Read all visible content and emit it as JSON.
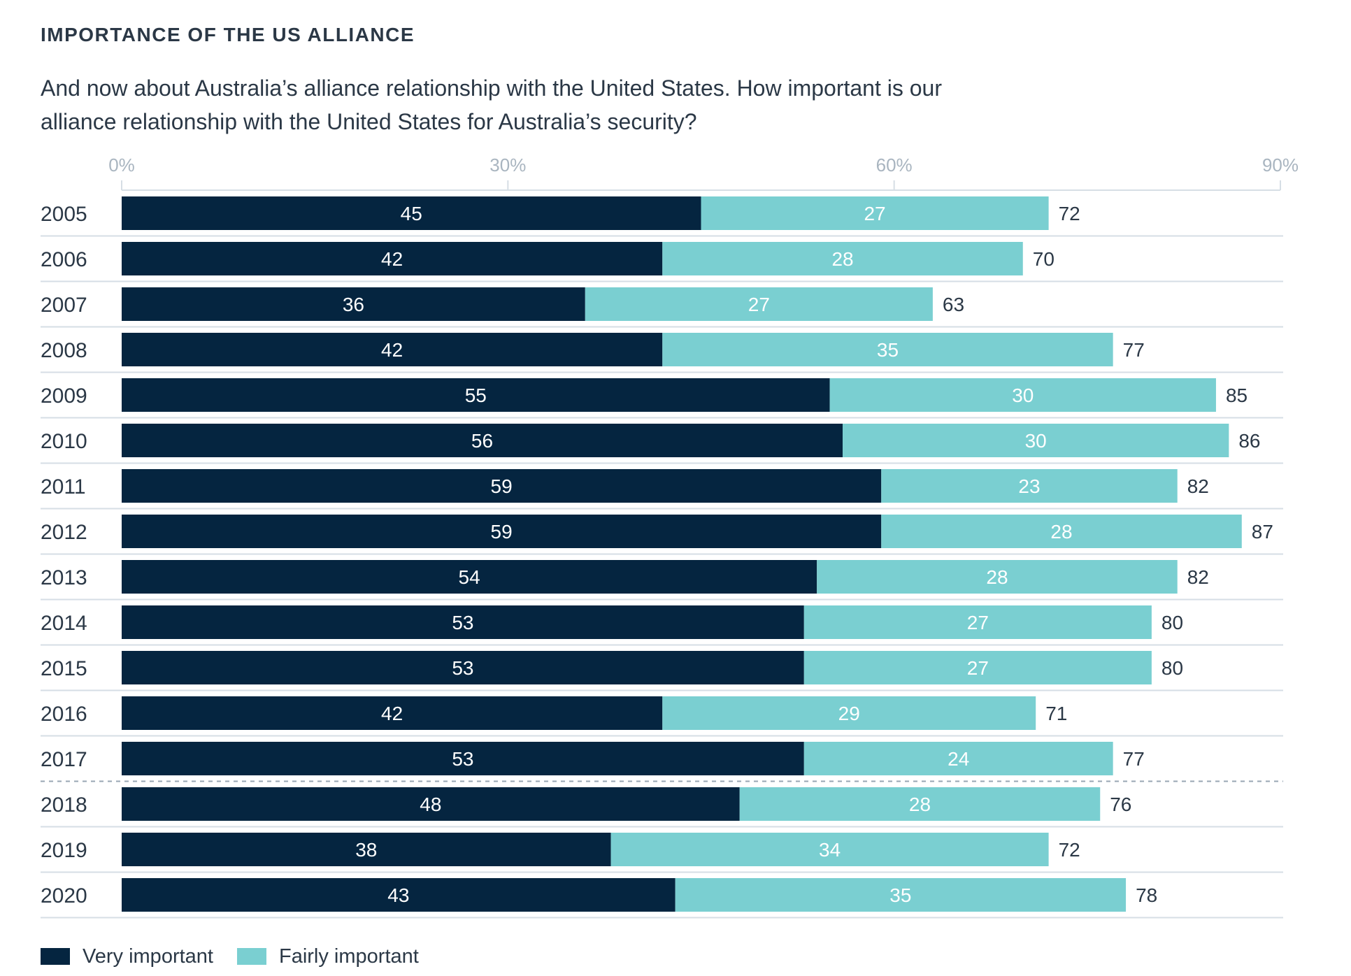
{
  "title": "IMPORTANCE OF THE US ALLIANCE",
  "subtitle": "And now about Australia’s alliance relationship with the United States. How important is our alliance relationship with the United States for Australia’s security?",
  "colors": {
    "very_important": "#052540",
    "fairly_important": "#7acfd1",
    "axis_text": "#a9b5c0",
    "gridline": "#d6dee5",
    "divider_dashed": "#98a6b3"
  },
  "chart_data": {
    "type": "bar",
    "orientation": "horizontal",
    "stacked": true,
    "categories": [
      "2005",
      "2006",
      "2007",
      "2008",
      "2009",
      "2010",
      "2011",
      "2012",
      "2013",
      "2014",
      "2015",
      "2016",
      "2017",
      "2018",
      "2019",
      "2020"
    ],
    "series": [
      {
        "name": "Very important",
        "values": [
          45,
          42,
          36,
          42,
          55,
          56,
          59,
          59,
          54,
          53,
          53,
          42,
          53,
          48,
          38,
          43
        ]
      },
      {
        "name": "Fairly important",
        "values": [
          27,
          28,
          27,
          35,
          30,
          30,
          23,
          28,
          28,
          27,
          27,
          29,
          24,
          28,
          34,
          35
        ]
      }
    ],
    "totals": [
      72,
      70,
      63,
      77,
      85,
      86,
      82,
      87,
      82,
      80,
      80,
      71,
      77,
      76,
      72,
      78
    ],
    "xlim": [
      0,
      90
    ],
    "xticks": [
      "0%",
      "30%",
      "60%",
      "90%"
    ],
    "dashed_divider_after": "2017",
    "legend_position": "bottom-left"
  }
}
